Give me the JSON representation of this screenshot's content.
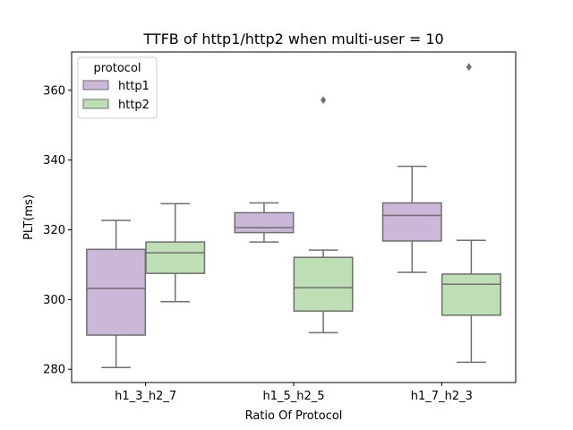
{
  "chart_data": {
    "type": "box",
    "title": "TTFB of http1/http2 when multi-user = 10",
    "xlabel": "Ratio Of Protocol",
    "ylabel": "PLT(ms)",
    "categories": [
      "h1_3_h2_7",
      "h1_5_h2_5",
      "h1_7_h2_3"
    ],
    "ylim": [
      276.2,
      371
    ],
    "yticks": [
      280,
      300,
      320,
      340,
      360
    ],
    "grid": false,
    "legend": {
      "title": "protocol",
      "placement": "top-left"
    },
    "series": [
      {
        "name": "http1",
        "color": "#cbb7d8",
        "boxes": [
          {
            "whisker_low": 280.5,
            "q1": 289.8,
            "median": 303.2,
            "q3": 314.4,
            "whisker_high": 322.7,
            "outliers": []
          },
          {
            "whisker_low": 316.5,
            "q1": 319.2,
            "median": 320.6,
            "q3": 324.9,
            "whisker_high": 327.7,
            "outliers": []
          },
          {
            "whisker_low": 307.8,
            "q1": 316.8,
            "median": 324.1,
            "q3": 327.7,
            "whisker_high": 338.2,
            "outliers": []
          }
        ]
      },
      {
        "name": "http2",
        "color": "#bedfb5",
        "boxes": [
          {
            "whisker_low": 299.4,
            "q1": 307.5,
            "median": 313.4,
            "q3": 316.5,
            "whisker_high": 327.5,
            "outliers": []
          },
          {
            "whisker_low": 290.5,
            "q1": 296.7,
            "median": 303.4,
            "q3": 312.1,
            "whisker_high": 314.2,
            "outliers": [
              357.2
            ]
          },
          {
            "whisker_low": 282.0,
            "q1": 295.5,
            "median": 304.4,
            "q3": 307.3,
            "whisker_high": 317.0,
            "outliers": []
          }
        ]
      }
    ],
    "extra_outliers": [
      {
        "category_index": 2,
        "series_index": 1,
        "value": 366.7,
        "position": "between"
      }
    ],
    "line_color": "#6f6f6f"
  }
}
